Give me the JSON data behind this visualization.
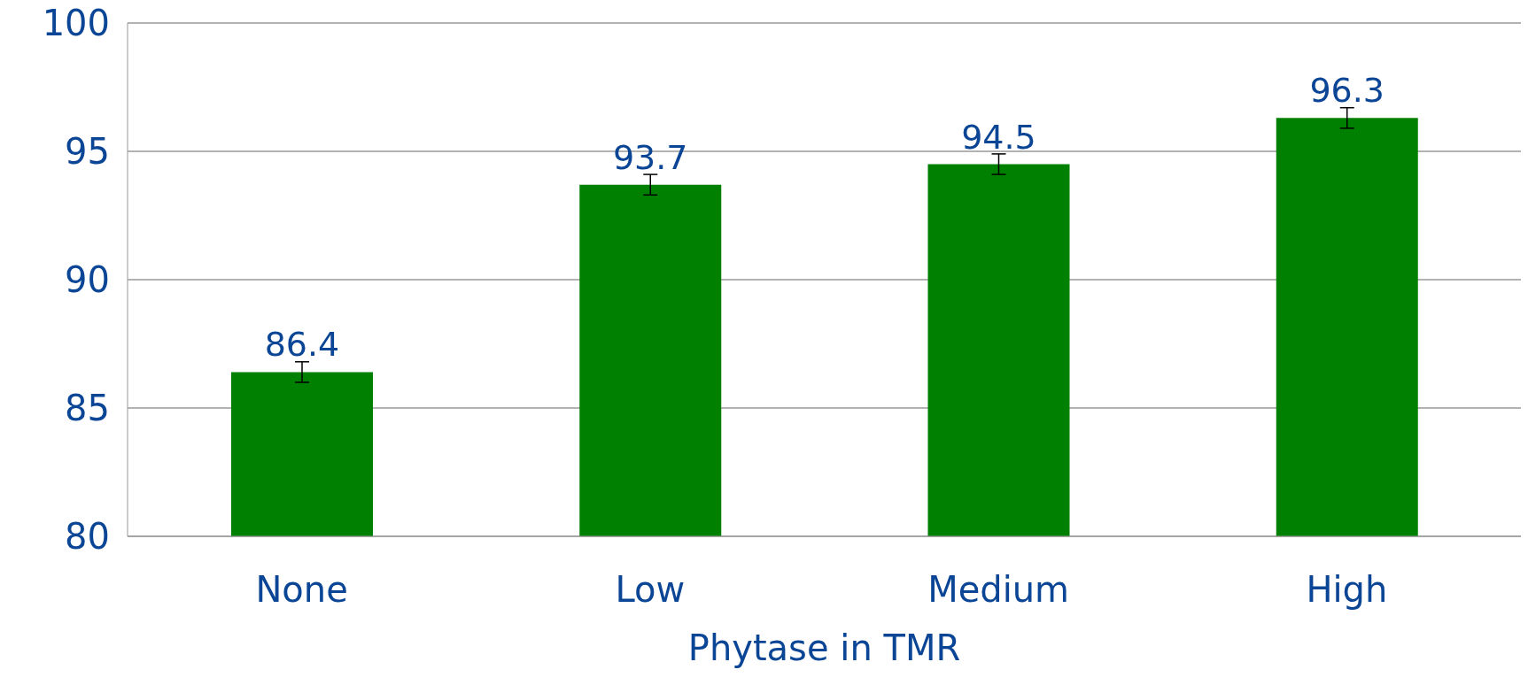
{
  "chart_data": {
    "type": "bar",
    "xlabel": "Phytase in TMR",
    "categories": [
      "None",
      "Low",
      "Medium",
      "High"
    ],
    "values": [
      86.4,
      93.7,
      94.5,
      96.3
    ],
    "errors": [
      0.4,
      0.4,
      0.4,
      0.4
    ],
    "color": "#008000",
    "ylim": [
      80,
      100
    ],
    "yticks": [
      80,
      85,
      90,
      95,
      100
    ],
    "grid": "y",
    "data_labels": true
  }
}
